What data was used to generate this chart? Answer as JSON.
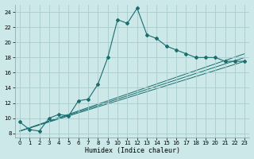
{
  "xlabel": "Humidex (Indice chaleur)",
  "bg_color": "#cce8e8",
  "grid_color": "#aacccc",
  "line_color": "#1a6e6e",
  "xlim": [
    -0.5,
    23.5
  ],
  "ylim": [
    7.5,
    25.0
  ],
  "xticks": [
    0,
    1,
    2,
    3,
    4,
    5,
    6,
    7,
    8,
    9,
    10,
    11,
    12,
    13,
    14,
    15,
    16,
    17,
    18,
    19,
    20,
    21,
    22,
    23
  ],
  "yticks": [
    8,
    10,
    12,
    14,
    16,
    18,
    20,
    22,
    24
  ],
  "main_line": {
    "x": [
      0,
      1,
      2,
      3,
      4,
      5,
      6,
      7,
      8,
      9,
      10,
      11,
      12,
      13,
      14,
      15,
      16,
      17,
      18,
      19,
      20,
      21,
      22,
      23
    ],
    "y": [
      9.5,
      8.5,
      8.3,
      10.0,
      10.5,
      10.3,
      12.3,
      12.5,
      14.5,
      18.0,
      23.0,
      22.5,
      24.5,
      21.0,
      20.5,
      19.5,
      19.0,
      18.5,
      18.0,
      18.0,
      18.0,
      17.5,
      17.5,
      17.5
    ]
  },
  "trend_lines": [
    {
      "x": [
        0,
        23
      ],
      "y": [
        8.3,
        17.5
      ]
    },
    {
      "x": [
        0,
        23
      ],
      "y": [
        8.3,
        18.0
      ]
    },
    {
      "x": [
        0,
        23
      ],
      "y": [
        8.3,
        18.5
      ]
    }
  ]
}
